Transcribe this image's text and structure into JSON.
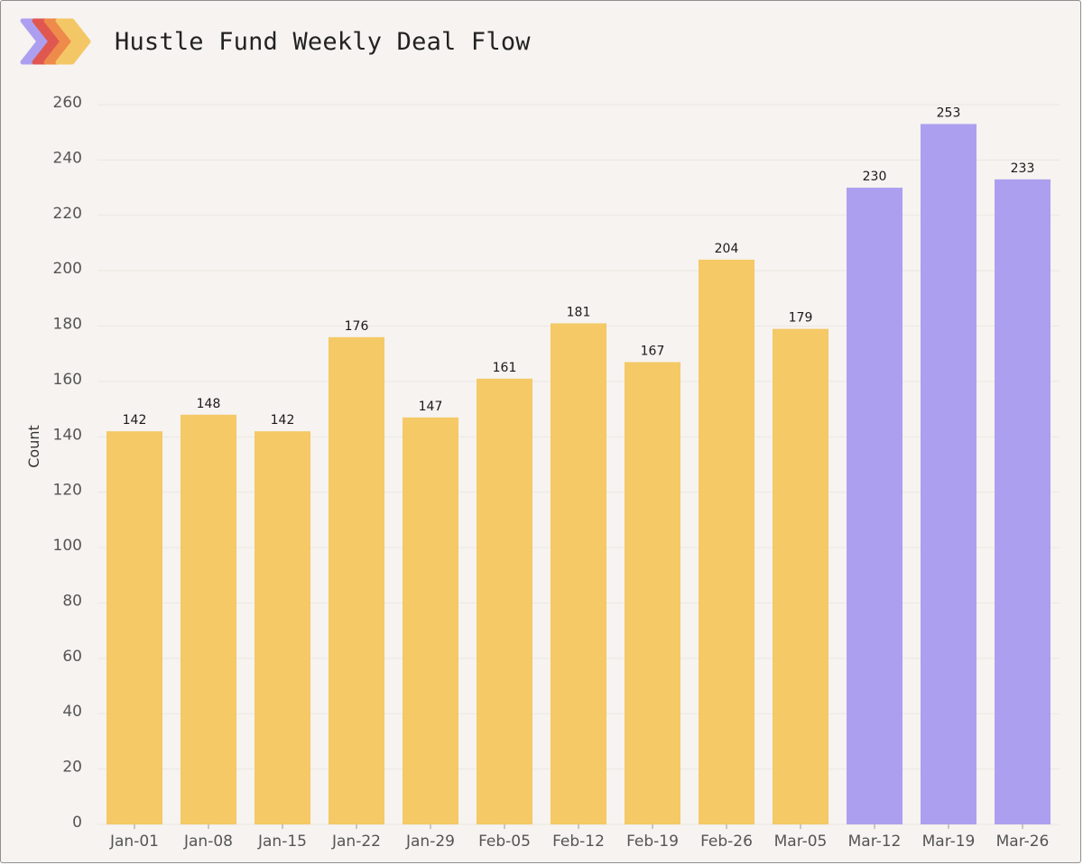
{
  "header": {
    "title": "Hustle Fund Weekly Deal Flow",
    "logo_icon": "chevrons-logo-icon",
    "logo_colors": [
      "#ad9ff0",
      "#e0574f",
      "#ee8a4a",
      "#f4c766"
    ]
  },
  "colors": {
    "background": "#f6f3f0",
    "bar_default": "#f4c966",
    "bar_highlight": "#ad9fef",
    "gridline": "#ece7e1"
  },
  "chart_data": {
    "type": "bar",
    "categories": [
      "Jan-01",
      "Jan-08",
      "Jan-15",
      "Jan-22",
      "Jan-29",
      "Feb-05",
      "Feb-12",
      "Feb-19",
      "Feb-26",
      "Mar-05",
      "Mar-12",
      "Mar-19",
      "Mar-26"
    ],
    "values": [
      142,
      148,
      142,
      176,
      147,
      161,
      181,
      167,
      204,
      179,
      230,
      253,
      233
    ],
    "highlighted_categories": [
      "Mar-12",
      "Mar-19",
      "Mar-26"
    ],
    "xlabel": "",
    "ylabel": "Count",
    "ylim": [
      0,
      260
    ],
    "yticks": [
      0,
      20,
      40,
      60,
      80,
      100,
      120,
      140,
      160,
      180,
      200,
      220,
      240,
      260
    ],
    "grid": "horizontal",
    "data_labels": true
  }
}
